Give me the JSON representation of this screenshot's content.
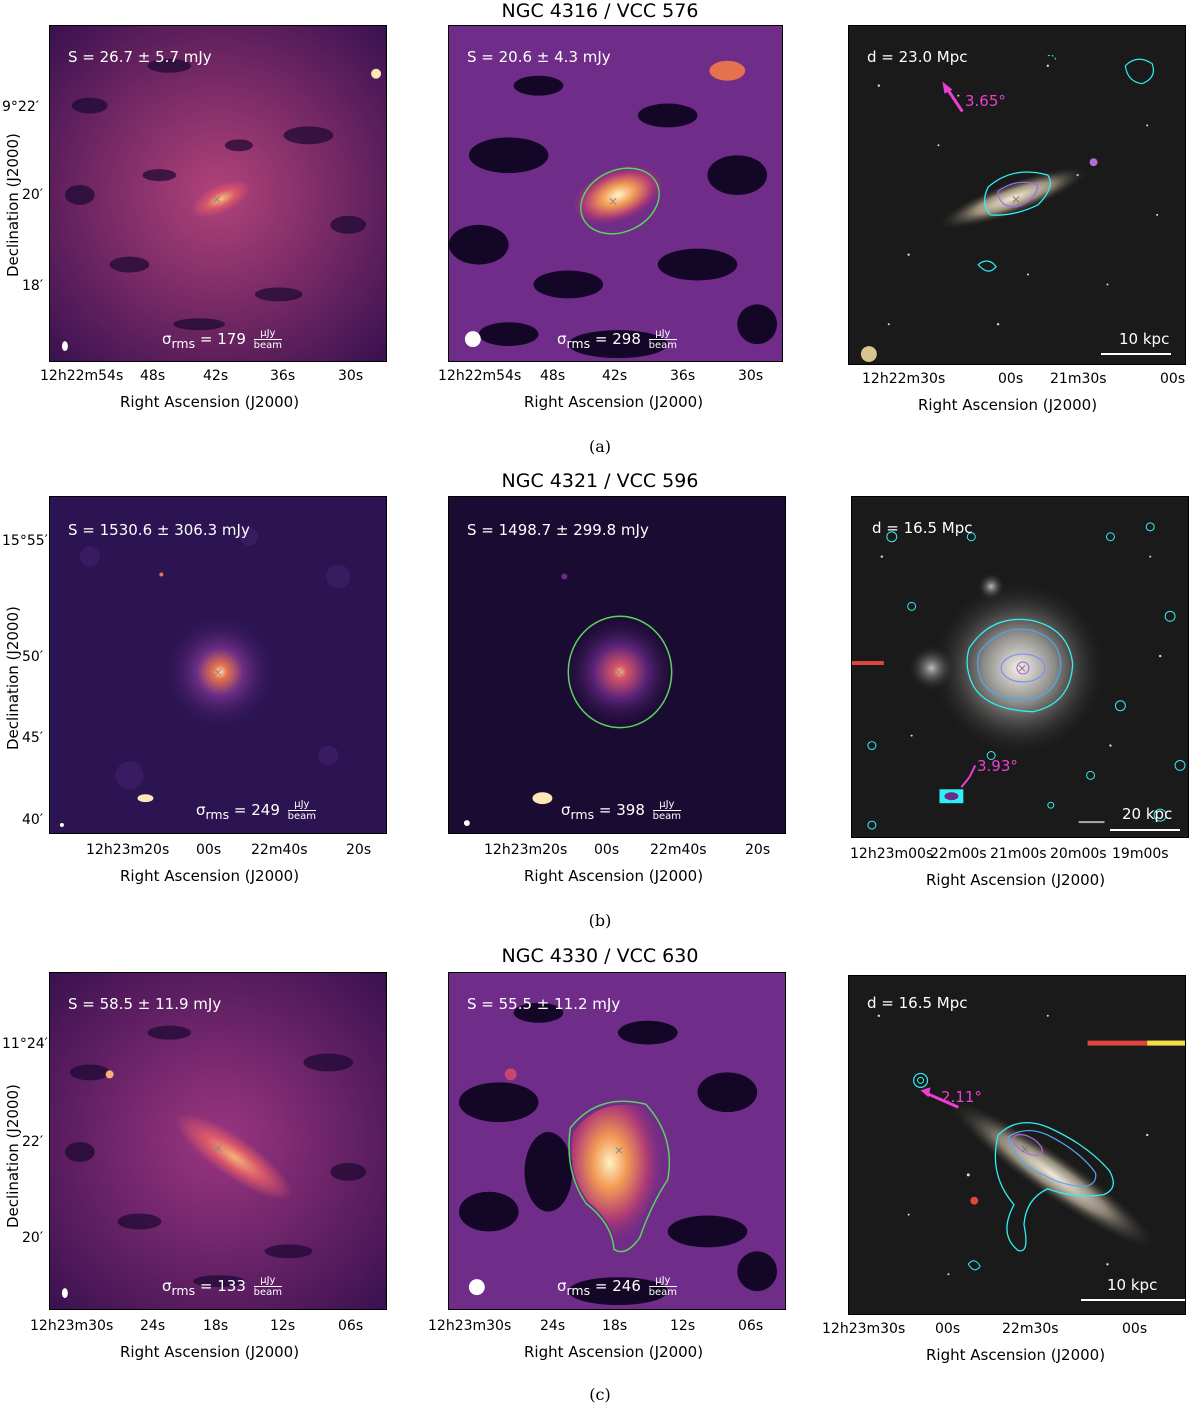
{
  "colors": {
    "magma_dark": "#14082e",
    "magma_purple": "#6b2c86",
    "magma_orange": "#e9734e",
    "magma_bright": "#fde9b6",
    "contour_cyan": "#2ff0f4",
    "contour_violet": "#9a6cf0",
    "ellipse_green": "#5bd45b",
    "arrow_magenta": "#ee3ed4",
    "optical_bg": "#1a1a1a"
  },
  "axis_labels": {
    "x": "Right Ascension (J2000)",
    "y": "Declination (J2000)"
  },
  "rows": [
    {
      "title": "NGC 4316 / VCC 576",
      "caption": "(a)",
      "left": {
        "flux": "S = 26.7 ± 5.7 mJy",
        "rms": "σ",
        "rms_sub": "rms",
        "rms_value": "= 179",
        "unit_num": "μJy",
        "unit_den": "beam"
      },
      "mid": {
        "flux": "S = 20.6 ± 4.3 mJy",
        "rms": "σ",
        "rms_sub": "rms",
        "rms_value": "= 298",
        "unit_num": "μJy",
        "unit_den": "beam"
      },
      "right": {
        "distance": "d = 23.0 Mpc",
        "angle": "3.65°",
        "scale": "10 kpc"
      },
      "yticks": [
        "9°22′",
        "20′",
        "18′"
      ],
      "xticks_radio": [
        "12h22m54s",
        "48s",
        "42s",
        "36s",
        "30s"
      ],
      "xticks_opt": [
        "12h22m30s",
        "00s",
        "21m30s",
        "00s"
      ]
    },
    {
      "title": "NGC 4321 / VCC 596",
      "caption": "(b)",
      "left": {
        "flux": "S = 1530.6 ± 306.3 mJy",
        "rms": "σ",
        "rms_sub": "rms",
        "rms_value": "= 249",
        "unit_num": "μJy",
        "unit_den": "beam"
      },
      "mid": {
        "flux": "S = 1498.7 ± 299.8 mJy",
        "rms": "σ",
        "rms_sub": "rms",
        "rms_value": "= 398",
        "unit_num": "μJy",
        "unit_den": "beam"
      },
      "right": {
        "distance": "d = 16.5 Mpc",
        "angle": "3.93°",
        "scale": "20 kpc"
      },
      "yticks": [
        "15°55′",
        "50′",
        "45′",
        "40′"
      ],
      "xticks_radio": [
        "12h23m20s",
        "00s",
        "22m40s",
        "20s"
      ],
      "xticks_opt": [
        "12h23m00s",
        "22m00s",
        "21m00s",
        "20m00s",
        "19m00s"
      ]
    },
    {
      "title": "NGC 4330 / VCC 630",
      "caption": "(c)",
      "left": {
        "flux": "S = 58.5 ± 11.9 mJy",
        "rms": "σ",
        "rms_sub": "rms",
        "rms_value": "= 133",
        "unit_num": "μJy",
        "unit_den": "beam"
      },
      "mid": {
        "flux": "S = 55.5 ± 11.2 mJy",
        "rms": "σ",
        "rms_sub": "rms",
        "rms_value": "= 246",
        "unit_num": "μJy",
        "unit_den": "beam"
      },
      "right": {
        "distance": "d = 16.5 Mpc",
        "angle": "2.11°",
        "scale": "10 kpc"
      },
      "yticks": [
        "11°24′",
        "22′",
        "20′"
      ],
      "xticks_radio": [
        "12h23m30s",
        "24s",
        "18s",
        "12s",
        "06s"
      ],
      "xticks_opt": [
        "12h23m30s",
        "00s",
        "22m30s",
        "00s"
      ]
    }
  ]
}
